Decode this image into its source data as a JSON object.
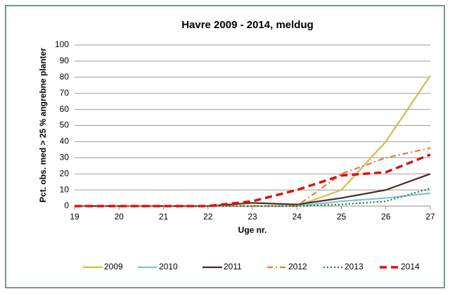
{
  "chart_data": {
    "type": "line",
    "title": "Havre 2009 - 2014, meldug",
    "x_label": "Uge nr.",
    "y_label": "Pct. obs. med > 25 % angrebne planter",
    "x": [
      19,
      20,
      21,
      22,
      23,
      24,
      25,
      26,
      27
    ],
    "xlim": [
      19,
      27
    ],
    "xticks": [
      19,
      20,
      21,
      22,
      23,
      24,
      25,
      26,
      27
    ],
    "ylim": [
      0,
      100
    ],
    "yticks": [
      0,
      10,
      20,
      30,
      40,
      50,
      60,
      70,
      80,
      90,
      100
    ],
    "grid": true,
    "legend": "bottom",
    "series": [
      {
        "name": "2009",
        "color": "#c9c04a",
        "style": "solid",
        "values": [
          0,
          0,
          0,
          0,
          0,
          0,
          10,
          40,
          81
        ]
      },
      {
        "name": "2010",
        "color": "#7fc3d8",
        "style": "solid",
        "values": [
          0,
          0,
          0,
          0,
          0,
          0,
          3,
          5,
          8
        ]
      },
      {
        "name": "2011",
        "color": "#4a2a22",
        "style": "solid",
        "values": [
          0,
          0,
          0,
          0,
          2,
          1,
          5,
          10,
          20
        ]
      },
      {
        "name": "2012",
        "color": "#e87a30",
        "style": "dashdot",
        "values": [
          0,
          0,
          0,
          0,
          0,
          0,
          20,
          30,
          36
        ]
      },
      {
        "name": "2013",
        "color": "#2e7a32",
        "style": "dotted",
        "values": [
          0,
          0,
          0,
          0,
          0,
          0,
          1,
          3,
          11
        ]
      },
      {
        "name": "2014",
        "color": "#e01010",
        "style": "dashed",
        "values": [
          0,
          0,
          0,
          0,
          3,
          10,
          19,
          21,
          32
        ]
      }
    ]
  }
}
